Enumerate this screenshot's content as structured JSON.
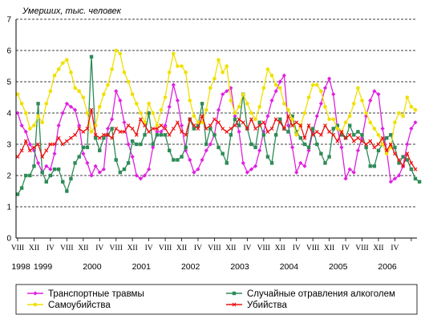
{
  "chart_data": {
    "type": "line",
    "ylabel": "Умерших, тыс. человек",
    "ylim": [
      0,
      7
    ],
    "yticks": [
      0,
      1,
      2,
      3,
      4,
      5,
      6,
      7
    ],
    "grid": "horizontal-dashed",
    "legend_position": "bottom",
    "x_start": "1998-08",
    "x_end": "2006-07",
    "month_labels": [
      "VIII",
      "XII",
      "IV",
      "VIII",
      "XII",
      "IV",
      "VIII",
      "XII",
      "IV",
      "VIII",
      "XII",
      "IV",
      "VIII",
      "XII",
      "IV",
      "VIII",
      "XII",
      "IV",
      "VIII",
      "XII",
      "IV",
      "VIII",
      "XII",
      "IV"
    ],
    "year_labels": [
      "1998",
      "1999",
      "2000",
      "2001",
      "2002",
      "2003",
      "2004",
      "2005",
      "2006"
    ],
    "series": [
      {
        "name": "Транспортные травмы",
        "color": "#e020e0",
        "marker": "diamond",
        "values": [
          4.0,
          3.6,
          3.4,
          3.0,
          2.8,
          2.4,
          2.1,
          2.3,
          2.2,
          2.7,
          3.6,
          4.0,
          4.3,
          4.2,
          4.1,
          3.6,
          2.7,
          2.4,
          2.0,
          2.3,
          2.1,
          2.2,
          3.5,
          3.8,
          4.7,
          4.4,
          3.7,
          3.0,
          2.6,
          2.0,
          1.9,
          2.0,
          2.2,
          2.9,
          3.4,
          3.4,
          3.6,
          4.2,
          4.9,
          4.4,
          3.6,
          2.8,
          2.5,
          2.1,
          2.2,
          2.5,
          2.8,
          3.0,
          3.3,
          4.1,
          4.6,
          4.7,
          4.8,
          3.9,
          3.4,
          2.4,
          2.1,
          2.2,
          2.3,
          2.8,
          3.4,
          3.9,
          4.4,
          4.7,
          5.0,
          5.2,
          3.6,
          2.9,
          2.1,
          2.4,
          2.3,
          2.8,
          3.4,
          3.9,
          4.3,
          4.8,
          5.1,
          4.6,
          3.5,
          2.9,
          1.9,
          2.2,
          2.1,
          2.8,
          3.2,
          3.9,
          4.4,
          4.7,
          4.6,
          3.5,
          2.8,
          1.8,
          1.9,
          2.0,
          2.3,
          3.0,
          3.5,
          3.7
        ]
      },
      {
        "name": "Случайные отравления алкоголем",
        "color": "#2e8b57",
        "marker": "square",
        "values": [
          1.4,
          1.6,
          2.0,
          2.0,
          2.3,
          4.3,
          2.1,
          1.8,
          2.0,
          2.2,
          2.2,
          1.8,
          1.5,
          1.9,
          2.4,
          2.6,
          2.9,
          2.9,
          5.8,
          3.2,
          2.8,
          3.2,
          3.3,
          3.5,
          2.5,
          2.1,
          2.2,
          2.4,
          3.1,
          3.0,
          3.0,
          3.3,
          4.0,
          3.0,
          3.3,
          3.3,
          3.3,
          2.8,
          2.5,
          2.5,
          2.6,
          2.9,
          3.8,
          3.5,
          3.6,
          4.3,
          3.0,
          3.5,
          3.3,
          2.9,
          2.7,
          2.4,
          3.3,
          3.8,
          3.6,
          4.6,
          3.5,
          3.0,
          2.9,
          3.7,
          3.3,
          2.6,
          2.4,
          3.3,
          3.8,
          3.5,
          3.4,
          3.9,
          3.4,
          3.2,
          3.0,
          2.9,
          3.5,
          3.0,
          2.7,
          2.4,
          2.6,
          3.5,
          3.6,
          3.3,
          3.2,
          3.6,
          3.3,
          3.4,
          3.3,
          2.9,
          2.3,
          2.3,
          2.8,
          3.0,
          3.2,
          3.3,
          2.9,
          2.4,
          2.6,
          2.5,
          2.2,
          1.9,
          1.8
        ]
      },
      {
        "name": "Самоубийства",
        "color": "#f0e000",
        "marker": "circle",
        "values": [
          4.6,
          4.3,
          4.0,
          3.5,
          3.6,
          3.9,
          3.7,
          4.3,
          4.7,
          5.2,
          5.4,
          5.6,
          5.7,
          5.3,
          4.8,
          4.7,
          4.5,
          4.0,
          3.4,
          3.6,
          4.2,
          4.6,
          4.9,
          5.4,
          6.0,
          5.9,
          5.3,
          5.0,
          4.6,
          4.3,
          4.0,
          3.7,
          4.3,
          4.0,
          3.6,
          4.1,
          4.5,
          5.3,
          5.9,
          5.5,
          5.5,
          5.3,
          4.4,
          3.9,
          3.7,
          3.7,
          4.1,
          4.8,
          5.1,
          5.7,
          5.3,
          5.5,
          4.4,
          4.0,
          4.2,
          4.6,
          4.3,
          4.0,
          3.8,
          4.2,
          4.8,
          5.4,
          5.2,
          4.9,
          4.8,
          4.3,
          4.1,
          3.8,
          3.3,
          3.6,
          4.0,
          4.5,
          4.9,
          4.9,
          4.7,
          4.2,
          3.8,
          3.8,
          3.5,
          3.4,
          3.7,
          3.9,
          4.3,
          4.8,
          4.4,
          4.0,
          3.7,
          3.5,
          3.3,
          3.0,
          2.7,
          2.9,
          3.7,
          4.0,
          3.9,
          4.5,
          4.2,
          4.1
        ]
      },
      {
        "name": "Убийства",
        "color": "#ee1010",
        "marker": "cross",
        "values": [
          2.6,
          2.8,
          3.1,
          2.8,
          2.9,
          3.0,
          2.6,
          2.8,
          3.0,
          3.0,
          3.2,
          3.0,
          3.1,
          3.2,
          3.3,
          3.5,
          3.4,
          3.5,
          4.1,
          3.3,
          3.2,
          3.3,
          3.3,
          3.2,
          3.5,
          3.4,
          3.4,
          3.6,
          3.5,
          3.3,
          3.8,
          3.6,
          3.4,
          3.5,
          3.5,
          3.6,
          3.5,
          3.3,
          3.5,
          3.7,
          3.4,
          3.3,
          3.8,
          3.6,
          3.5,
          3.9,
          3.5,
          3.6,
          3.8,
          3.7,
          3.5,
          3.4,
          3.5,
          3.6,
          3.8,
          3.7,
          3.5,
          3.8,
          3.5,
          3.6,
          3.7,
          3.4,
          3.5,
          3.8,
          3.7,
          3.5,
          3.9,
          3.6,
          3.7,
          3.6,
          3.2,
          3.6,
          3.3,
          3.4,
          3.3,
          3.6,
          3.4,
          3.3,
          3.1,
          3.4,
          3.2,
          3.3,
          3.1,
          3.2,
          3.1,
          3.0,
          3.1,
          2.9,
          3.0,
          3.2,
          2.8,
          3.0,
          2.7,
          2.5,
          2.3,
          2.7,
          2.4,
          2.2
        ]
      }
    ]
  }
}
